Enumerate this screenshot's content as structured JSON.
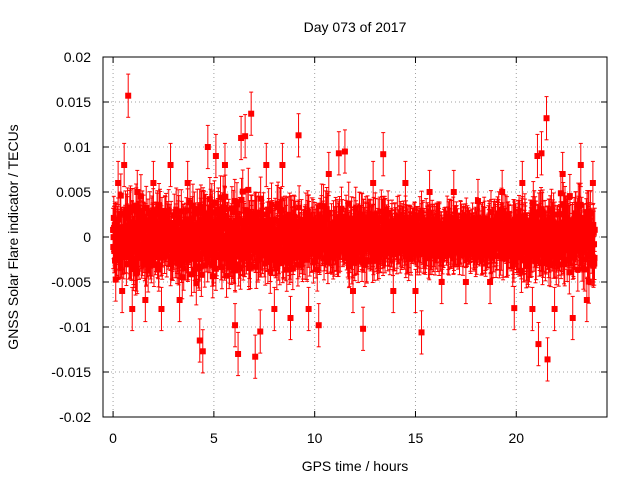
{
  "chart_data": {
    "type": "scatter",
    "title": "Day 073 of 2017",
    "xlabel": "GPS time / hours",
    "ylabel": "GNSS Solar Flare indicator / TECUs",
    "xlim": [
      -0.5,
      24.5
    ],
    "ylim": [
      -0.02,
      0.02
    ],
    "grid": true,
    "legend": "none",
    "colors": {
      "series": "#ff0000",
      "grid": "#a0a0a0",
      "axes": "#000000"
    },
    "x_ticks": [
      {
        "value": 0,
        "label": "0"
      },
      {
        "value": 5,
        "label": "5"
      },
      {
        "value": 10,
        "label": "10"
      },
      {
        "value": 15,
        "label": "15"
      },
      {
        "value": 20,
        "label": "20"
      }
    ],
    "y_ticks": [
      {
        "value": 0.02,
        "label": "0.02"
      },
      {
        "value": 0.015,
        "label": "0.015"
      },
      {
        "value": 0.01,
        "label": "0.01"
      },
      {
        "value": 0.005,
        "label": "0.005"
      },
      {
        "value": 0,
        "label": "0"
      },
      {
        "value": -0.005,
        "label": "-0.005"
      },
      {
        "value": -0.01,
        "label": "-0.01"
      },
      {
        "value": -0.015,
        "label": "-0.015"
      },
      {
        "value": -0.02,
        "label": "-0.02"
      }
    ],
    "series": [
      {
        "name": "GNSS Solar Flare indicator",
        "style": "points with error bars",
        "error_bar": 0.0024,
        "points": [
          [
            0.05,
            0.001
          ],
          [
            0.25,
            0.006
          ],
          [
            0.45,
            -0.006
          ],
          [
            0.55,
            0.008
          ],
          [
            0.75,
            0.0157
          ],
          [
            0.95,
            -0.008
          ],
          [
            1.2,
            0.005
          ],
          [
            1.6,
            -0.007
          ],
          [
            2.0,
            0.006
          ],
          [
            2.4,
            -0.008
          ],
          [
            2.85,
            0.008
          ],
          [
            3.3,
            -0.007
          ],
          [
            3.7,
            0.006
          ],
          [
            4.3,
            -0.0115
          ],
          [
            4.45,
            -0.0127
          ],
          [
            4.7,
            0.01
          ],
          [
            5.1,
            0.009
          ],
          [
            5.55,
            0.008
          ],
          [
            6.05,
            -0.0098
          ],
          [
            6.2,
            -0.013
          ],
          [
            6.35,
            0.011
          ],
          [
            6.55,
            0.0112
          ],
          [
            6.85,
            0.0137
          ],
          [
            7.05,
            -0.0133
          ],
          [
            7.3,
            -0.0105
          ],
          [
            7.6,
            0.008
          ],
          [
            8.0,
            -0.008
          ],
          [
            8.4,
            0.008
          ],
          [
            8.8,
            -0.009
          ],
          [
            9.2,
            0.0113
          ],
          [
            9.7,
            -0.008
          ],
          [
            10.2,
            -0.0098
          ],
          [
            10.7,
            0.007
          ],
          [
            11.2,
            0.0093
          ],
          [
            11.5,
            0.0095
          ],
          [
            11.9,
            -0.006
          ],
          [
            12.4,
            -0.0102
          ],
          [
            12.9,
            0.006
          ],
          [
            13.4,
            0.0092
          ],
          [
            13.9,
            -0.006
          ],
          [
            14.5,
            0.006
          ],
          [
            15.0,
            -0.006
          ],
          [
            15.3,
            -0.0106
          ],
          [
            15.7,
            0.005
          ],
          [
            16.3,
            -0.005
          ],
          [
            16.9,
            0.005
          ],
          [
            17.5,
            -0.005
          ],
          [
            18.1,
            0.004
          ],
          [
            18.7,
            -0.005
          ],
          [
            19.3,
            0.005
          ],
          [
            19.9,
            -0.0079
          ],
          [
            20.3,
            0.006
          ],
          [
            20.8,
            -0.008
          ],
          [
            21.05,
            0.009
          ],
          [
            21.25,
            0.0093
          ],
          [
            21.1,
            -0.0119
          ],
          [
            21.5,
            0.0132
          ],
          [
            21.55,
            -0.0136
          ],
          [
            21.9,
            -0.008
          ],
          [
            22.3,
            0.007
          ],
          [
            22.8,
            -0.009
          ],
          [
            23.2,
            0.008
          ],
          [
            23.5,
            -0.007
          ],
          [
            23.8,
            0.006
          ]
        ],
        "envelope": [
          [
            0.0,
            0.0055
          ],
          [
            2.0,
            0.0055
          ],
          [
            4.0,
            0.0055
          ],
          [
            6.0,
            0.0058
          ],
          [
            8.0,
            0.0055
          ],
          [
            10.0,
            0.0045
          ],
          [
            12.0,
            0.0042
          ],
          [
            14.0,
            0.0035
          ],
          [
            16.0,
            0.003
          ],
          [
            18.0,
            0.0028
          ],
          [
            19.0,
            0.0035
          ],
          [
            20.0,
            0.0045
          ],
          [
            22.0,
            0.0055
          ],
          [
            24.0,
            0.0055
          ]
        ]
      }
    ]
  }
}
